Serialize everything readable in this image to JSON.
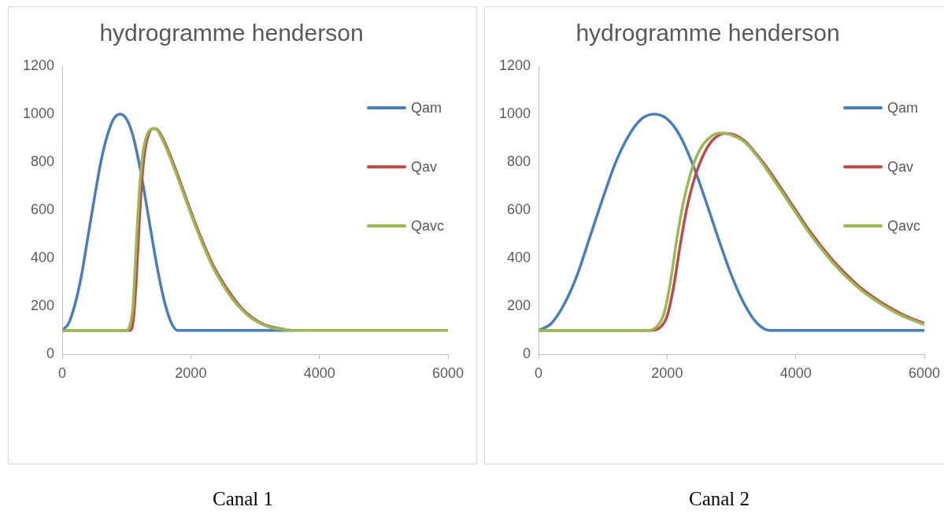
{
  "chart_data": [
    {
      "type": "line",
      "title": "hydrogramme henderson",
      "xlim": [
        0,
        6000
      ],
      "xticks": [
        0,
        2000,
        4000,
        6000
      ],
      "ylim": [
        0,
        1200
      ],
      "yticks": [
        0,
        200,
        400,
        600,
        800,
        1000,
        1200
      ],
      "grid": false,
      "legend": "right",
      "marker": "none",
      "annotations": [
        "Canal 1"
      ],
      "series": [
        {
          "name": "Qam",
          "color": "#4a7ebb",
          "x": [
            0,
            100,
            200,
            300,
            400,
            500,
            600,
            700,
            800,
            900,
            1000,
            1100,
            1200,
            1300,
            1400,
            1500,
            1600,
            1700,
            1800,
            3600
          ],
          "values": [
            100,
            130,
            210,
            330,
            490,
            650,
            800,
            910,
            980,
            1000,
            980,
            910,
            790,
            640,
            480,
            330,
            210,
            130,
            100,
            100
          ]
        },
        {
          "name": "Qav",
          "color": "#be4b48",
          "x": [
            0,
            1050,
            1100,
            1150,
            1200,
            1250,
            1300,
            1350,
            1400,
            1450,
            1500,
            1600,
            1750,
            1900,
            2050,
            2200,
            2350,
            2500,
            2650,
            2800,
            2950,
            3100,
            3250,
            3450
          ],
          "values": [
            100,
            100,
            130,
            300,
            560,
            760,
            870,
            920,
            940,
            940,
            930,
            880,
            780,
            670,
            560,
            460,
            370,
            300,
            240,
            190,
            155,
            130,
            115,
            105
          ]
        },
        {
          "name": "Qavc",
          "color": "#98b954",
          "x": [
            0,
            1000,
            1050,
            1100,
            1150,
            1200,
            1250,
            1300,
            1350,
            1400,
            1450,
            1500,
            1600,
            1750,
            1900,
            2050,
            2200,
            2350,
            2500,
            2650,
            2800,
            2950,
            3100,
            3250,
            3450,
            3750,
            6000
          ],
          "values": [
            100,
            100,
            120,
            200,
            450,
            680,
            830,
            900,
            930,
            940,
            940,
            925,
            870,
            770,
            660,
            550,
            450,
            360,
            290,
            230,
            185,
            150,
            127,
            112,
            104,
            100,
            100
          ]
        }
      ]
    },
    {
      "type": "line",
      "title": "hydrogramme henderson",
      "xlim": [
        0,
        6000
      ],
      "xticks": [
        0,
        2000,
        4000,
        6000
      ],
      "ylim": [
        0,
        1200
      ],
      "yticks": [
        0,
        200,
        400,
        600,
        800,
        1000,
        1200
      ],
      "grid": false,
      "legend": "right",
      "marker": "none",
      "annotations": [
        "Canal 2"
      ],
      "series": [
        {
          "name": "Qam",
          "color": "#4a7ebb",
          "x": [
            0,
            200,
            400,
            600,
            800,
            1000,
            1200,
            1400,
            1600,
            1800,
            2000,
            2200,
            2400,
            2600,
            2800,
            3000,
            3200,
            3400,
            3600,
            6000
          ],
          "values": [
            100,
            130,
            210,
            330,
            490,
            650,
            800,
            910,
            980,
            1000,
            980,
            910,
            790,
            640,
            480,
            330,
            210,
            130,
            100,
            100
          ]
        },
        {
          "name": "Qav",
          "color": "#be4b48",
          "x": [
            0,
            1750,
            1900,
            2000,
            2100,
            2200,
            2300,
            2400,
            2500,
            2600,
            2700,
            2800,
            2900,
            3000,
            3200,
            3400,
            3600,
            3800,
            4000,
            4200,
            4400,
            4600,
            4800,
            5000,
            5200,
            5400,
            5600,
            5800,
            6000
          ],
          "values": [
            100,
            100,
            115,
            160,
            280,
            450,
            600,
            710,
            790,
            850,
            890,
            912,
            920,
            918,
            890,
            830,
            760,
            680,
            600,
            520,
            450,
            385,
            330,
            280,
            240,
            205,
            175,
            150,
            130
          ]
        },
        {
          "name": "Qavc",
          "color": "#98b954",
          "x": [
            0,
            1700,
            1850,
            1950,
            2050,
            2150,
            2250,
            2350,
            2450,
            2550,
            2650,
            2750,
            2850,
            2950,
            3200,
            3400,
            3600,
            3800,
            4000,
            4200,
            4400,
            4600,
            4800,
            5000,
            5200,
            5400,
            5600,
            5800,
            6000
          ],
          "values": [
            100,
            100,
            120,
            170,
            300,
            480,
            630,
            740,
            820,
            870,
            900,
            918,
            922,
            918,
            885,
            825,
            750,
            670,
            590,
            510,
            440,
            375,
            320,
            272,
            232,
            198,
            168,
            145,
            125
          ]
        }
      ]
    }
  ]
}
